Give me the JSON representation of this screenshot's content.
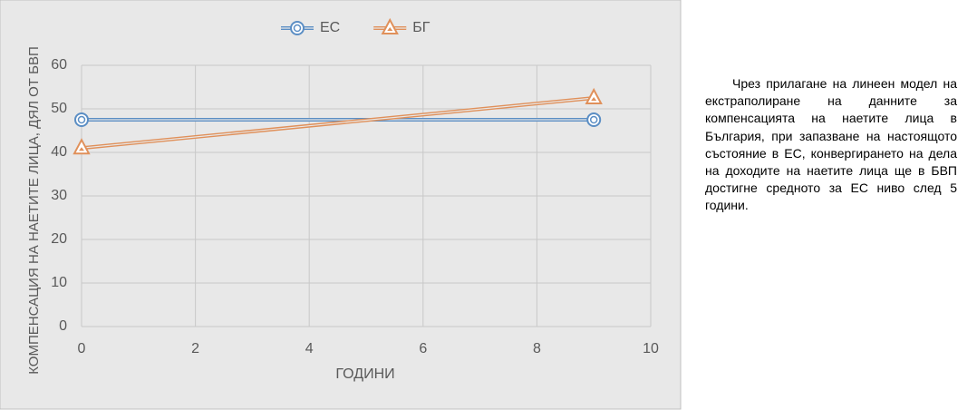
{
  "chart_data": {
    "type": "line",
    "xlabel": "ГОДИНИ",
    "ylabel": "КОМПЕНСАЦИЯ НА НАЕТИТЕ ЛИЦА, ДЯЛ ОТ БВП",
    "series": [
      {
        "name": "ЕС",
        "color": "#5b8ec4",
        "marker": "circle",
        "x": [
          0,
          9
        ],
        "values": [
          47.5,
          47.5
        ]
      },
      {
        "name": "БГ",
        "color": "#e0905a",
        "marker": "triangle",
        "x": [
          0,
          9
        ],
        "values": [
          41,
          52.5
        ]
      }
    ],
    "xlim": [
      0,
      10
    ],
    "xticks": [
      0,
      2,
      4,
      6,
      8,
      10
    ],
    "ylim": [
      0,
      60
    ],
    "yticks": [
      0,
      10,
      20,
      30,
      40,
      50,
      60
    ],
    "grid": true,
    "legend": "top"
  },
  "text": {
    "paragraph": "Чрез прилагане на линеен модел на екстраполиране на данните за компенсацията на наетите лица в България, при запазване на настоящото състояние в ЕС, конвергирането на дела на доходите на наетите лица ще в БВП достигне средното за ЕС ниво след 5 години."
  }
}
